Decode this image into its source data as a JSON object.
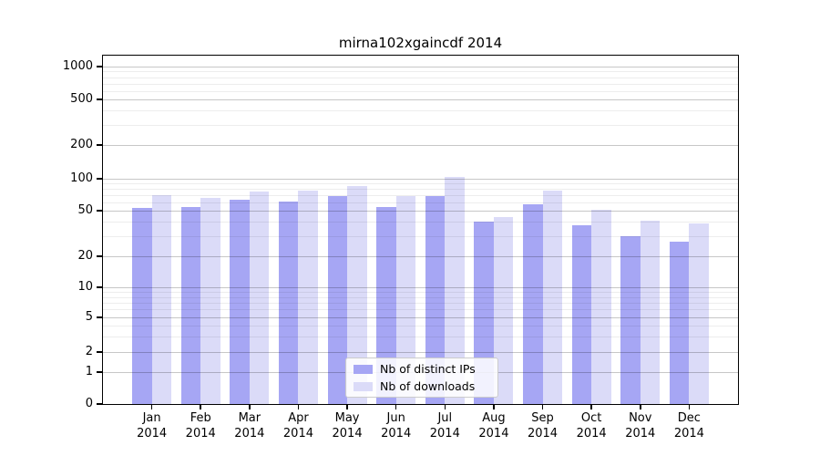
{
  "title": "mirna102xgaincdf 2014",
  "chart_data": {
    "type": "bar",
    "title": "mirna102xgaincdf 2014",
    "categories": [
      "Jan",
      "Feb",
      "Mar",
      "Apr",
      "May",
      "Jun",
      "Jul",
      "Aug",
      "Sep",
      "Oct",
      "Nov",
      "Dec"
    ],
    "year": "2014",
    "series": [
      {
        "name": "Nb of distinct IPs",
        "color": "#a6a6f4",
        "values": [
          53,
          54,
          64,
          61,
          69,
          54,
          68,
          40,
          57,
          37,
          30,
          27
        ]
      },
      {
        "name": "Nb of downloads",
        "color": "#dbdbf8",
        "values": [
          70,
          66,
          76,
          78,
          86,
          68,
          103,
          44,
          78,
          51,
          41,
          39
        ]
      }
    ],
    "xlabel": "",
    "ylabel": "",
    "yscale": "symlog",
    "y_ticks": [
      1000,
      500,
      200,
      100,
      50,
      20,
      10,
      5,
      2,
      1,
      0
    ],
    "ylim": [
      0,
      1260
    ],
    "grid": true,
    "legend_position": "lower center"
  },
  "colors": {
    "axis": "#000000",
    "grid_major": "rgba(0,0,0,0.22)",
    "grid_minor": "rgba(0,0,0,0.07)",
    "legend_border": "#cccccc",
    "background": "#ffffff"
  }
}
